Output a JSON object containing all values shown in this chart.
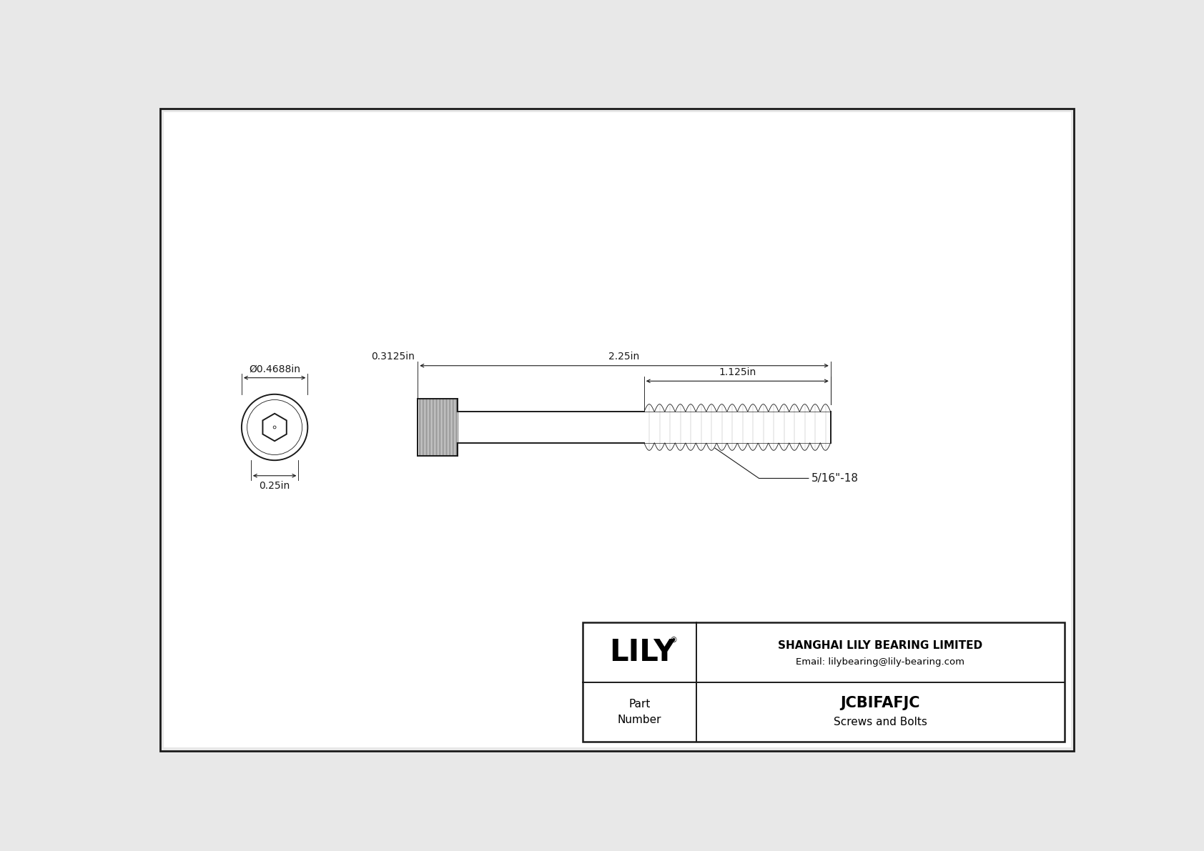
{
  "bg_color": "#e8e8e8",
  "drawing_bg": "#f5f5f5",
  "line_color": "#1a1a1a",
  "dim_color": "#1a1a1a",
  "title": "JCBIFAFJC",
  "subtitle": "Screws and Bolts",
  "company": "SHANGHAI LILY BEARING LIMITED",
  "email": "Email: lilybearing@lily-bearing.com",
  "part_label": "Part\nNumber",
  "dim_diameter": "Ø0.4688in",
  "dim_height": "0.25in",
  "dim_head_width": "0.3125in",
  "dim_total_length": "2.25in",
  "dim_thread_length": "1.125in",
  "thread_label": "5/16\"-18",
  "font_size_dim": 10,
  "font_size_company": 11,
  "font_size_part": 13,
  "lw_main": 1.4,
  "lw_dim": 0.8,
  "lw_thin": 0.6
}
